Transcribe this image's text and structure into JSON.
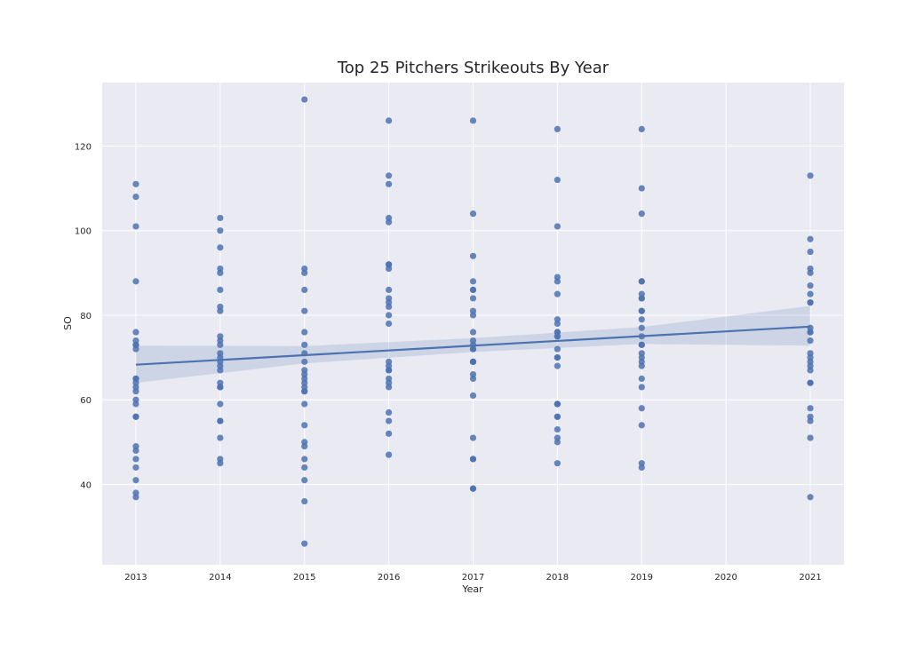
{
  "chart_data": {
    "type": "scatter",
    "title": "Top 25 Pitchers Strikeouts By Year",
    "xlabel": "Year",
    "ylabel": "SO",
    "x_ticks": [
      "2013",
      "2014",
      "2015",
      "2016",
      "2017",
      "2018",
      "2019",
      "2020",
      "2021"
    ],
    "y_ticks": [
      "40",
      "60",
      "80",
      "100",
      "120"
    ],
    "xlim": [
      2012.6,
      2021.4
    ],
    "ylim": [
      21,
      135
    ],
    "grid": true,
    "colors": {
      "background": "#eaeaf2",
      "grid": "#ffffff",
      "point": "#4c72b0",
      "band": "#4c72b0"
    },
    "points": [
      {
        "x": 2013,
        "y": 111
      },
      {
        "x": 2013,
        "y": 108
      },
      {
        "x": 2013,
        "y": 101
      },
      {
        "x": 2013,
        "y": 88
      },
      {
        "x": 2013,
        "y": 76
      },
      {
        "x": 2013,
        "y": 74
      },
      {
        "x": 2013,
        "y": 73
      },
      {
        "x": 2013,
        "y": 72
      },
      {
        "x": 2013,
        "y": 65
      },
      {
        "x": 2013,
        "y": 64
      },
      {
        "x": 2013,
        "y": 63
      },
      {
        "x": 2013,
        "y": 62
      },
      {
        "x": 2013,
        "y": 60
      },
      {
        "x": 2013,
        "y": 59
      },
      {
        "x": 2013,
        "y": 56
      },
      {
        "x": 2013,
        "y": 56
      },
      {
        "x": 2013,
        "y": 49
      },
      {
        "x": 2013,
        "y": 48
      },
      {
        "x": 2013,
        "y": 46
      },
      {
        "x": 2013,
        "y": 44
      },
      {
        "x": 2013,
        "y": 41
      },
      {
        "x": 2013,
        "y": 38
      },
      {
        "x": 2013,
        "y": 37
      },
      {
        "x": 2013,
        "y": 65
      },
      {
        "x": 2013,
        "y": 73
      },
      {
        "x": 2014,
        "y": 103
      },
      {
        "x": 2014,
        "y": 100
      },
      {
        "x": 2014,
        "y": 96
      },
      {
        "x": 2014,
        "y": 91
      },
      {
        "x": 2014,
        "y": 90
      },
      {
        "x": 2014,
        "y": 86
      },
      {
        "x": 2014,
        "y": 82
      },
      {
        "x": 2014,
        "y": 81
      },
      {
        "x": 2014,
        "y": 75
      },
      {
        "x": 2014,
        "y": 74
      },
      {
        "x": 2014,
        "y": 73
      },
      {
        "x": 2014,
        "y": 71
      },
      {
        "x": 2014,
        "y": 70
      },
      {
        "x": 2014,
        "y": 68
      },
      {
        "x": 2014,
        "y": 67
      },
      {
        "x": 2014,
        "y": 64
      },
      {
        "x": 2014,
        "y": 63
      },
      {
        "x": 2014,
        "y": 63
      },
      {
        "x": 2014,
        "y": 59
      },
      {
        "x": 2014,
        "y": 55
      },
      {
        "x": 2014,
        "y": 55
      },
      {
        "x": 2014,
        "y": 51
      },
      {
        "x": 2014,
        "y": 46
      },
      {
        "x": 2014,
        "y": 45
      },
      {
        "x": 2014,
        "y": 69
      },
      {
        "x": 2015,
        "y": 131
      },
      {
        "x": 2015,
        "y": 91
      },
      {
        "x": 2015,
        "y": 90
      },
      {
        "x": 2015,
        "y": 86
      },
      {
        "x": 2015,
        "y": 81
      },
      {
        "x": 2015,
        "y": 76
      },
      {
        "x": 2015,
        "y": 73
      },
      {
        "x": 2015,
        "y": 71
      },
      {
        "x": 2015,
        "y": 69
      },
      {
        "x": 2015,
        "y": 67
      },
      {
        "x": 2015,
        "y": 66
      },
      {
        "x": 2015,
        "y": 65
      },
      {
        "x": 2015,
        "y": 64
      },
      {
        "x": 2015,
        "y": 63
      },
      {
        "x": 2015,
        "y": 62
      },
      {
        "x": 2015,
        "y": 59
      },
      {
        "x": 2015,
        "y": 54
      },
      {
        "x": 2015,
        "y": 50
      },
      {
        "x": 2015,
        "y": 49
      },
      {
        "x": 2015,
        "y": 46
      },
      {
        "x": 2015,
        "y": 44
      },
      {
        "x": 2015,
        "y": 41
      },
      {
        "x": 2015,
        "y": 36
      },
      {
        "x": 2015,
        "y": 26
      },
      {
        "x": 2015,
        "y": 62
      },
      {
        "x": 2016,
        "y": 126
      },
      {
        "x": 2016,
        "y": 113
      },
      {
        "x": 2016,
        "y": 111
      },
      {
        "x": 2016,
        "y": 103
      },
      {
        "x": 2016,
        "y": 102
      },
      {
        "x": 2016,
        "y": 92
      },
      {
        "x": 2016,
        "y": 91
      },
      {
        "x": 2016,
        "y": 86
      },
      {
        "x": 2016,
        "y": 84
      },
      {
        "x": 2016,
        "y": 83
      },
      {
        "x": 2016,
        "y": 82
      },
      {
        "x": 2016,
        "y": 80
      },
      {
        "x": 2016,
        "y": 78
      },
      {
        "x": 2016,
        "y": 69
      },
      {
        "x": 2016,
        "y": 68
      },
      {
        "x": 2016,
        "y": 67
      },
      {
        "x": 2016,
        "y": 65
      },
      {
        "x": 2016,
        "y": 63
      },
      {
        "x": 2016,
        "y": 57
      },
      {
        "x": 2016,
        "y": 55
      },
      {
        "x": 2016,
        "y": 52
      },
      {
        "x": 2016,
        "y": 47
      },
      {
        "x": 2016,
        "y": 92
      },
      {
        "x": 2016,
        "y": 64
      },
      {
        "x": 2016,
        "y": 67
      },
      {
        "x": 2017,
        "y": 126
      },
      {
        "x": 2017,
        "y": 104
      },
      {
        "x": 2017,
        "y": 94
      },
      {
        "x": 2017,
        "y": 88
      },
      {
        "x": 2017,
        "y": 86
      },
      {
        "x": 2017,
        "y": 86
      },
      {
        "x": 2017,
        "y": 84
      },
      {
        "x": 2017,
        "y": 81
      },
      {
        "x": 2017,
        "y": 80
      },
      {
        "x": 2017,
        "y": 76
      },
      {
        "x": 2017,
        "y": 74
      },
      {
        "x": 2017,
        "y": 73
      },
      {
        "x": 2017,
        "y": 72
      },
      {
        "x": 2017,
        "y": 69
      },
      {
        "x": 2017,
        "y": 69
      },
      {
        "x": 2017,
        "y": 66
      },
      {
        "x": 2017,
        "y": 65
      },
      {
        "x": 2017,
        "y": 61
      },
      {
        "x": 2017,
        "y": 51
      },
      {
        "x": 2017,
        "y": 46
      },
      {
        "x": 2017,
        "y": 46
      },
      {
        "x": 2017,
        "y": 39
      },
      {
        "x": 2017,
        "y": 39
      },
      {
        "x": 2017,
        "y": 72
      },
      {
        "x": 2017,
        "y": 69
      },
      {
        "x": 2018,
        "y": 124
      },
      {
        "x": 2018,
        "y": 112
      },
      {
        "x": 2018,
        "y": 101
      },
      {
        "x": 2018,
        "y": 89
      },
      {
        "x": 2018,
        "y": 88
      },
      {
        "x": 2018,
        "y": 85
      },
      {
        "x": 2018,
        "y": 79
      },
      {
        "x": 2018,
        "y": 78
      },
      {
        "x": 2018,
        "y": 76
      },
      {
        "x": 2018,
        "y": 75
      },
      {
        "x": 2018,
        "y": 72
      },
      {
        "x": 2018,
        "y": 70
      },
      {
        "x": 2018,
        "y": 68
      },
      {
        "x": 2018,
        "y": 59
      },
      {
        "x": 2018,
        "y": 59
      },
      {
        "x": 2018,
        "y": 56
      },
      {
        "x": 2018,
        "y": 56
      },
      {
        "x": 2018,
        "y": 53
      },
      {
        "x": 2018,
        "y": 51
      },
      {
        "x": 2018,
        "y": 50
      },
      {
        "x": 2018,
        "y": 45
      },
      {
        "x": 2018,
        "y": 75
      },
      {
        "x": 2018,
        "y": 70
      },
      {
        "x": 2018,
        "y": 59
      },
      {
        "x": 2018,
        "y": 76
      },
      {
        "x": 2019,
        "y": 124
      },
      {
        "x": 2019,
        "y": 110
      },
      {
        "x": 2019,
        "y": 104
      },
      {
        "x": 2019,
        "y": 88
      },
      {
        "x": 2019,
        "y": 88
      },
      {
        "x": 2019,
        "y": 85
      },
      {
        "x": 2019,
        "y": 84
      },
      {
        "x": 2019,
        "y": 84
      },
      {
        "x": 2019,
        "y": 81
      },
      {
        "x": 2019,
        "y": 81
      },
      {
        "x": 2019,
        "y": 79
      },
      {
        "x": 2019,
        "y": 77
      },
      {
        "x": 2019,
        "y": 75
      },
      {
        "x": 2019,
        "y": 73
      },
      {
        "x": 2019,
        "y": 71
      },
      {
        "x": 2019,
        "y": 70
      },
      {
        "x": 2019,
        "y": 69
      },
      {
        "x": 2019,
        "y": 68
      },
      {
        "x": 2019,
        "y": 65
      },
      {
        "x": 2019,
        "y": 63
      },
      {
        "x": 2019,
        "y": 58
      },
      {
        "x": 2019,
        "y": 54
      },
      {
        "x": 2019,
        "y": 45
      },
      {
        "x": 2019,
        "y": 44
      },
      {
        "x": 2019,
        "y": 73
      },
      {
        "x": 2021,
        "y": 113
      },
      {
        "x": 2021,
        "y": 98
      },
      {
        "x": 2021,
        "y": 95
      },
      {
        "x": 2021,
        "y": 91
      },
      {
        "x": 2021,
        "y": 90
      },
      {
        "x": 2021,
        "y": 87
      },
      {
        "x": 2021,
        "y": 85
      },
      {
        "x": 2021,
        "y": 83
      },
      {
        "x": 2021,
        "y": 83
      },
      {
        "x": 2021,
        "y": 77
      },
      {
        "x": 2021,
        "y": 76
      },
      {
        "x": 2021,
        "y": 74
      },
      {
        "x": 2021,
        "y": 71
      },
      {
        "x": 2021,
        "y": 70
      },
      {
        "x": 2021,
        "y": 68
      },
      {
        "x": 2021,
        "y": 67
      },
      {
        "x": 2021,
        "y": 64
      },
      {
        "x": 2021,
        "y": 64
      },
      {
        "x": 2021,
        "y": 58
      },
      {
        "x": 2021,
        "y": 56
      },
      {
        "x": 2021,
        "y": 55
      },
      {
        "x": 2021,
        "y": 51
      },
      {
        "x": 2021,
        "y": 37
      },
      {
        "x": 2021,
        "y": 76
      },
      {
        "x": 2021,
        "y": 69
      }
    ],
    "regression": {
      "line": [
        {
          "x": 2013,
          "y": 68.3
        },
        {
          "x": 2021,
          "y": 77.3
        }
      ],
      "ci_upper": [
        {
          "x": 2013,
          "y": 72.8
        },
        {
          "x": 2015,
          "y": 72.7
        },
        {
          "x": 2017,
          "y": 74.6
        },
        {
          "x": 2019,
          "y": 77.2
        },
        {
          "x": 2021,
          "y": 82.2
        }
      ],
      "ci_lower": [
        {
          "x": 2013,
          "y": 64.0
        },
        {
          "x": 2015,
          "y": 68.6
        },
        {
          "x": 2017,
          "y": 71.3
        },
        {
          "x": 2019,
          "y": 73.2
        },
        {
          "x": 2021,
          "y": 72.8
        }
      ]
    }
  }
}
